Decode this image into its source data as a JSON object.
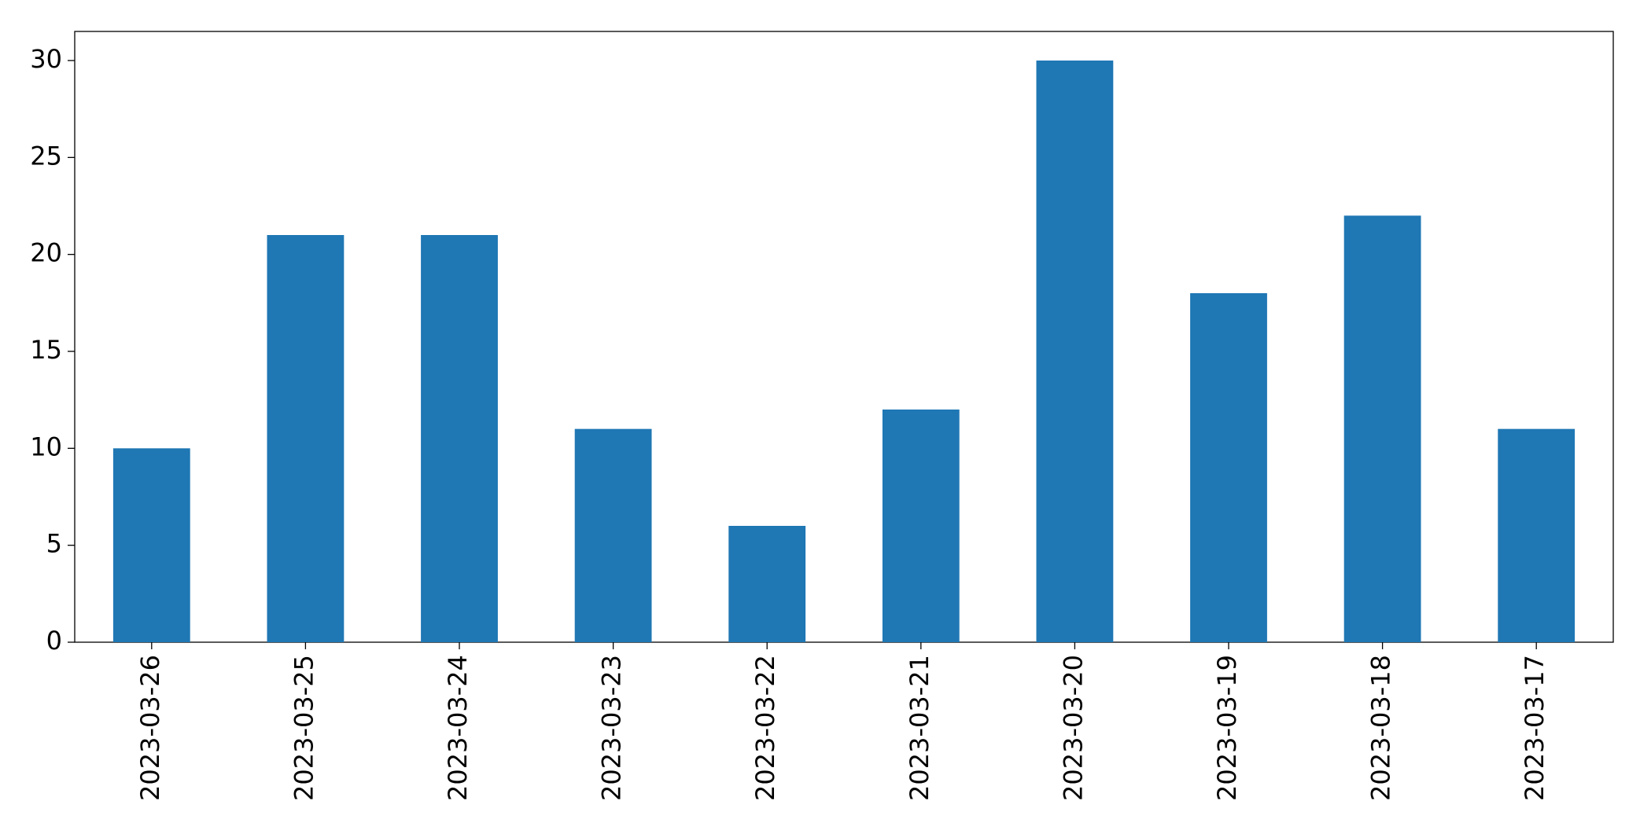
{
  "chart_data": {
    "type": "bar",
    "categories": [
      "2023-03-26",
      "2023-03-25",
      "2023-03-24",
      "2023-03-23",
      "2023-03-22",
      "2023-03-21",
      "2023-03-20",
      "2023-03-19",
      "2023-03-18",
      "2023-03-17"
    ],
    "values": [
      10,
      21,
      21,
      11,
      6,
      12,
      30,
      18,
      22,
      11
    ],
    "color": "#1f77b4",
    "ylim": [
      0,
      31.5
    ],
    "yticks": [
      0,
      5,
      10,
      15,
      20,
      25,
      30
    ],
    "grid": false
  }
}
